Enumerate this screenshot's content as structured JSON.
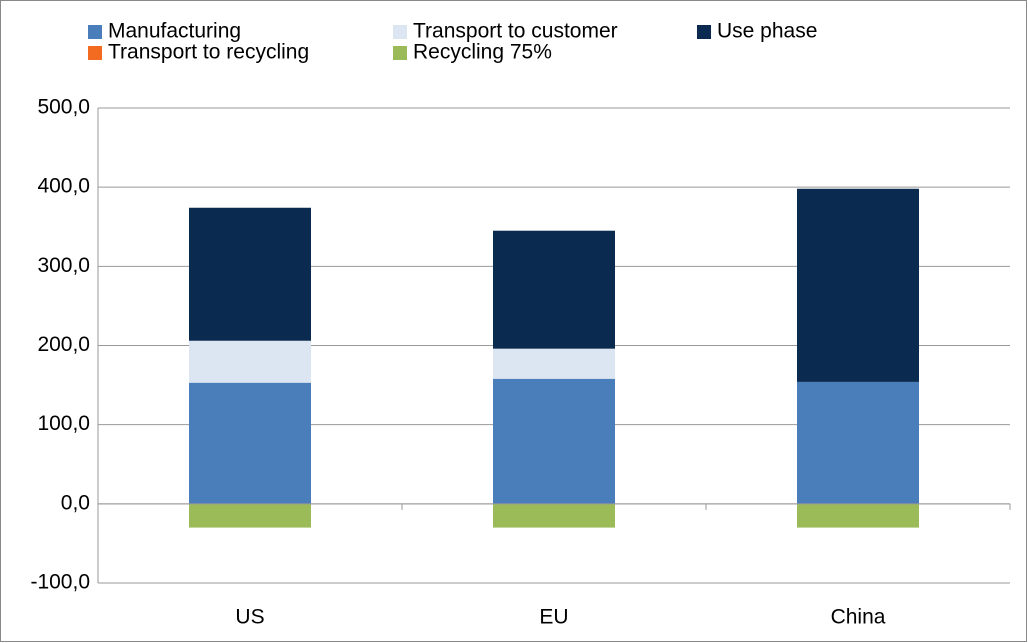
{
  "chart_data": {
    "type": "stacked-bar",
    "categories": [
      "US",
      "EU",
      "China"
    ],
    "series": [
      {
        "name": "Manufacturing",
        "color": "#4a7ebb",
        "values": [
          153,
          158,
          154
        ]
      },
      {
        "name": "Transport to customer",
        "color": "#dce6f2",
        "values": [
          53,
          38,
          0
        ]
      },
      {
        "name": "Use phase",
        "color": "#0b2a4f",
        "values": [
          168,
          149,
          244
        ]
      },
      {
        "name": "Transport to recycling",
        "color": "#f26b21",
        "values": [
          0,
          0,
          0
        ]
      },
      {
        "name": "Recycling 75%",
        "color": "#9bbb59",
        "values": [
          -30,
          -30,
          -30
        ]
      }
    ],
    "ylim": [
      -100,
      500
    ],
    "yticks": [
      {
        "value": -100,
        "label": "-100,0"
      },
      {
        "value": 0,
        "label": "0,0"
      },
      {
        "value": 100,
        "label": "100,0"
      },
      {
        "value": 200,
        "label": "200,0"
      },
      {
        "value": 300,
        "label": "300,0"
      },
      {
        "value": 400,
        "label": "400,0"
      },
      {
        "value": 500,
        "label": "500,0"
      }
    ],
    "grid": true
  }
}
